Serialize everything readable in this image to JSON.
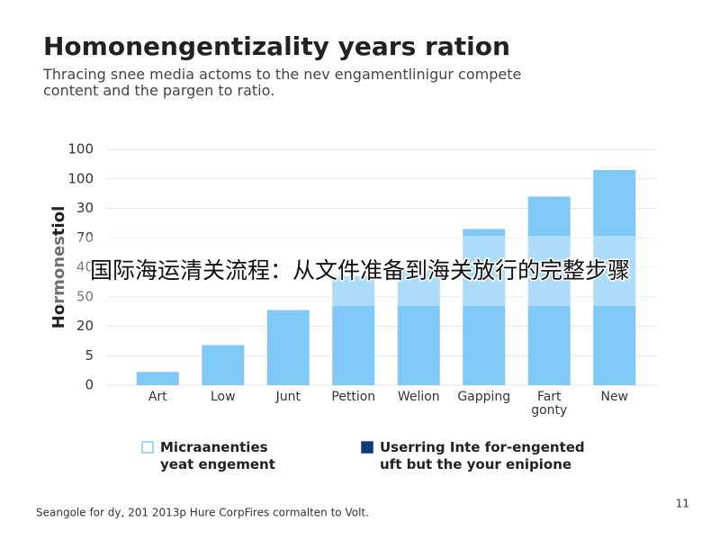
{
  "title": "Homonengentizality years ration",
  "subtitle": "Thracing snee media actoms to the nev engamentlinigur compete\ncontent and the pargen to ratio.",
  "chart_data": {
    "type": "bar",
    "y_label": "Hormonestiol",
    "categories": [
      "Art",
      "Low",
      "Junt",
      "Pettion",
      "Welion",
      "Gapping",
      "Fart\ngonty",
      "New"
    ],
    "series": [
      {
        "name": "Micraanenties\nyeat engement",
        "color": "#80c9f6",
        "values": [
          4.5,
          13.6,
          25.5,
          37,
          39,
          53,
          64,
          73
        ]
      }
    ],
    "ylim": [
      0,
      80
    ],
    "yticks": [
      0,
      {
        "value": 10,
        "label": "5"
      },
      {
        "value": 20,
        "label": "20"
      },
      {
        "value": 30,
        "label": "50"
      },
      40,
      {
        "value": 50,
        "label": "70"
      },
      {
        "value": 60,
        "label": "30"
      },
      {
        "value": 70,
        "label": "100"
      },
      {
        "value": 80,
        "label": "100"
      }
    ],
    "grid": true,
    "legend": [
      {
        "label": "Micraanenties\nyeat engement",
        "color": "#80c9f6",
        "filled": false
      },
      {
        "label": "Userring Inte for-engented\nuft but the your enipione",
        "color": "#0d3a78",
        "filled": true
      }
    ]
  },
  "footer": "Seangole for dy, 201 2013p Hure CorpFires cormalten to Volt.",
  "page_number": "11",
  "overlay_text": "国际海运清关流程：从文件准备到海关放行的完整步骤"
}
